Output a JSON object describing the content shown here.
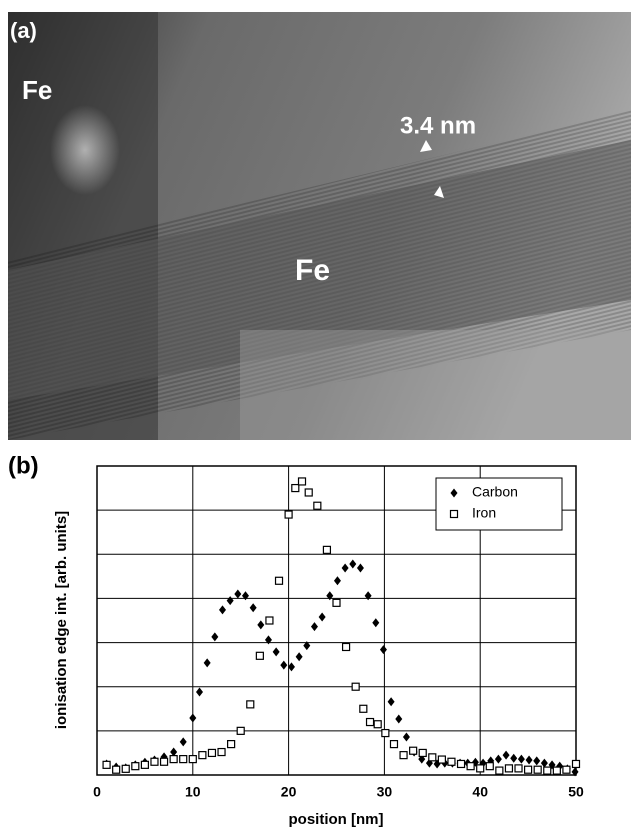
{
  "image": {
    "panel_label": "(a)",
    "labels": [
      "Fe",
      "3.4 nm",
      "Fe"
    ]
  },
  "chart_data": {
    "type": "scatter",
    "panel_label": "(b)",
    "x_label": "position [nm]",
    "y_label": "ionisation edge int. [arb. units]",
    "xlim": [
      0,
      50
    ],
    "xticks": [
      0,
      10,
      20,
      30,
      40,
      50
    ],
    "ylim": [
      0,
      7
    ],
    "yticks": [
      0,
      1,
      2,
      3,
      4,
      5,
      6,
      7
    ],
    "grid": true,
    "legend": "upper right",
    "series": [
      {
        "name": "Carbon",
        "color": "#000000",
        "marker": "diamond",
        "x": [
          1,
          2,
          3,
          4,
          5,
          6,
          7,
          8,
          9,
          10,
          10.7,
          11.5,
          12.3,
          13.1,
          13.9,
          14.7,
          15.5,
          16.3,
          17.1,
          17.9,
          18.7,
          19.5,
          20.3,
          21.1,
          21.9,
          22.7,
          23.5,
          24.3,
          25.1,
          25.9,
          26.7,
          27.5,
          28.3,
          29.1,
          29.9,
          30.7,
          31.5,
          32.3,
          33.1,
          33.9,
          34.7,
          35.5,
          36.3,
          37.1,
          37.9,
          38.7,
          39.5,
          40.3,
          41.1,
          41.9,
          42.7,
          43.5,
          44.3,
          45.1,
          45.9,
          46.7,
          47.5,
          48.3,
          49.1,
          49.9
        ],
        "values": [
          0.25,
          0.18,
          0.16,
          0.23,
          0.29,
          0.34,
          0.41,
          0.52,
          0.75,
          1.29,
          1.88,
          2.54,
          3.13,
          3.74,
          3.95,
          4.1,
          4.06,
          3.79,
          3.4,
          3.06,
          2.79,
          2.49,
          2.45,
          2.68,
          2.93,
          3.36,
          3.58,
          4.06,
          4.4,
          4.69,
          4.78,
          4.69,
          4.06,
          3.45,
          2.84,
          1.66,
          1.27,
          0.86,
          0.52,
          0.36,
          0.27,
          0.25,
          0.27,
          0.27,
          0.27,
          0.27,
          0.29,
          0.27,
          0.32,
          0.36,
          0.45,
          0.38,
          0.36,
          0.34,
          0.32,
          0.27,
          0.23,
          0.2,
          0.14,
          0.07
        ]
      },
      {
        "name": "Iron",
        "color": "#000000",
        "marker": "square",
        "x": [
          1,
          2,
          3,
          4,
          5,
          6,
          7,
          8,
          9,
          10,
          11,
          12,
          13,
          14,
          15,
          16,
          17,
          18,
          19,
          20,
          20.7,
          21.4,
          22.1,
          23,
          24,
          25,
          26,
          27,
          27.8,
          28.5,
          29.3,
          30.1,
          31,
          32,
          33,
          34,
          35,
          36,
          37,
          38,
          39,
          40,
          41,
          42,
          43,
          44,
          45,
          46,
          47,
          48,
          49,
          50
        ],
        "values": [
          0.23,
          0.12,
          0.14,
          0.2,
          0.23,
          0.3,
          0.3,
          0.36,
          0.36,
          0.36,
          0.45,
          0.5,
          0.52,
          0.7,
          1.0,
          1.6,
          2.7,
          3.5,
          4.4,
          5.9,
          6.5,
          6.65,
          6.4,
          6.1,
          5.1,
          3.9,
          2.9,
          2.0,
          1.5,
          1.2,
          1.15,
          0.95,
          0.7,
          0.45,
          0.55,
          0.5,
          0.4,
          0.35,
          0.3,
          0.25,
          0.2,
          0.15,
          0.2,
          0.1,
          0.15,
          0.15,
          0.12,
          0.12,
          0.1,
          0.1,
          0.12,
          0.25
        ]
      }
    ]
  }
}
